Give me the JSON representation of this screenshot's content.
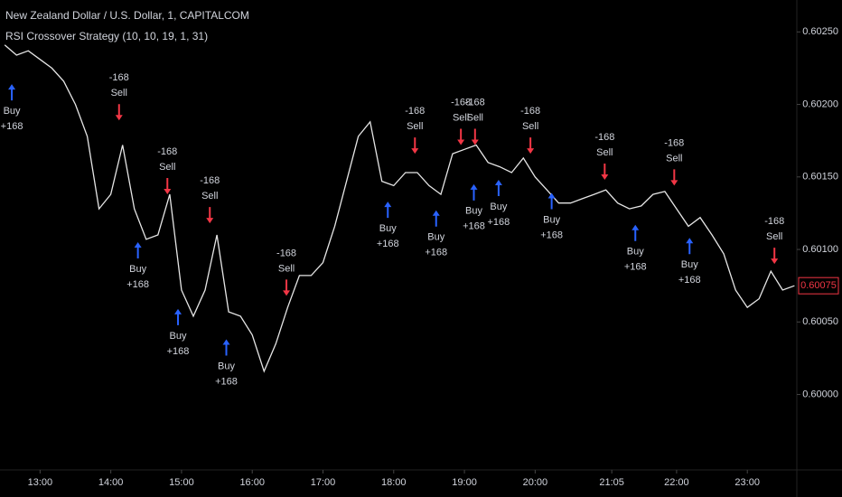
{
  "chart_data": {
    "type": "line",
    "title": "New Zealand Dollar / U.S. Dollar, 1, CAPITALCOM",
    "subtitle": "RSI Crossover Strategy (10, 10, 19, 1, 31)",
    "color": "#e6e6e6",
    "x": [
      "12:30",
      "12:40",
      "12:50",
      "13:00",
      "13:10",
      "13:20",
      "13:30",
      "13:40",
      "13:50",
      "14:00",
      "14:10",
      "14:20",
      "14:30",
      "14:40",
      "14:50",
      "15:00",
      "15:10",
      "15:20",
      "15:30",
      "15:40",
      "15:50",
      "16:00",
      "16:10",
      "16:20",
      "16:30",
      "16:40",
      "16:50",
      "17:00",
      "17:10",
      "17:20",
      "17:30",
      "17:40",
      "17:50",
      "18:00",
      "18:10",
      "18:20",
      "18:30",
      "18:40",
      "18:50",
      "19:00",
      "19:10",
      "19:20",
      "19:30",
      "19:40",
      "19:50",
      "20:00",
      "20:10",
      "20:20",
      "20:30",
      "20:40",
      "20:50",
      "21:00",
      "21:10",
      "21:20",
      "21:30",
      "21:40",
      "21:50",
      "22:00",
      "22:10",
      "22:20",
      "22:30",
      "22:40",
      "22:50",
      "23:00",
      "23:10",
      "23:20",
      "23:30",
      "23:40"
    ],
    "values": [
      0.60241,
      0.60234,
      0.60237,
      0.60231,
      0.60225,
      0.60216,
      0.602,
      0.60178,
      0.60128,
      0.60138,
      0.60172,
      0.60128,
      0.60107,
      0.6011,
      0.60138,
      0.60072,
      0.60054,
      0.60072,
      0.6011,
      0.60057,
      0.60054,
      0.60041,
      0.60016,
      0.60035,
      0.6006,
      0.60082,
      0.60082,
      0.60091,
      0.60116,
      0.60147,
      0.60178,
      0.60188,
      0.60147,
      0.60144,
      0.60153,
      0.60153,
      0.60144,
      0.60138,
      0.60166,
      0.60169,
      0.60172,
      0.6016,
      0.60157,
      0.60153,
      0.60163,
      0.6015,
      0.60141,
      0.60132,
      0.60132,
      0.60135,
      0.60138,
      0.60141,
      0.60132,
      0.60128,
      0.6013,
      0.60138,
      0.6014,
      0.60128,
      0.60116,
      0.60122,
      0.6011,
      0.60097,
      0.60072,
      0.6006,
      0.60066,
      0.60085,
      0.60072,
      0.60075
    ],
    "xlim": [
      "12:26",
      "23:42"
    ],
    "xticks": [
      "13:00",
      "14:00",
      "15:00",
      "16:00",
      "17:00",
      "18:00",
      "19:00",
      "20:00",
      "21:05",
      "22:00",
      "23:00"
    ],
    "ylim": [
      0.59948,
      0.60272
    ],
    "yticks": [
      {
        "value": 0.6,
        "label": "0.60000"
      },
      {
        "value": 0.6005,
        "label": "0.60050"
      },
      {
        "value": 0.601,
        "label": "0.60100"
      },
      {
        "value": 0.6015,
        "label": "0.60150"
      },
      {
        "value": 0.602,
        "label": "0.60200"
      },
      {
        "value": 0.6025,
        "label": "0.60250"
      }
    ],
    "signals": [
      {
        "side": "Buy",
        "qty": "+168",
        "time": "12:36",
        "price": 0.60214
      },
      {
        "side": "Sell",
        "qty": "-168",
        "time": "14:07",
        "price": 0.60189
      },
      {
        "side": "Buy",
        "qty": "+168",
        "time": "14:23",
        "price": 0.60105
      },
      {
        "side": "Sell",
        "qty": "-168",
        "time": "14:48",
        "price": 0.60138
      },
      {
        "side": "Buy",
        "qty": "+168",
        "time": "14:57",
        "price": 0.60059
      },
      {
        "side": "Sell",
        "qty": "-168",
        "time": "15:24",
        "price": 0.60118
      },
      {
        "side": "Buy",
        "qty": "+168",
        "time": "15:38",
        "price": 0.60038
      },
      {
        "side": "Sell",
        "qty": "-168",
        "time": "16:29",
        "price": 0.60068
      },
      {
        "side": "Buy",
        "qty": "+168",
        "time": "17:55",
        "price": 0.60133
      },
      {
        "side": "Sell",
        "qty": "-168",
        "time": "18:18",
        "price": 0.60166
      },
      {
        "side": "Buy",
        "qty": "+168",
        "time": "18:36",
        "price": 0.60127
      },
      {
        "side": "Sell",
        "qty": "-168",
        "time": "18:57",
        "price": 0.60172
      },
      {
        "side": "Buy",
        "qty": "+168",
        "time": "19:08",
        "price": 0.60145
      },
      {
        "side": "Sell",
        "qty": "-168",
        "time": "19:09",
        "price": 0.60172
      },
      {
        "side": "Buy",
        "qty": "+168",
        "time": "19:29",
        "price": 0.60148
      },
      {
        "side": "Sell",
        "qty": "-168",
        "time": "19:56",
        "price": 0.60166
      },
      {
        "side": "Buy",
        "qty": "+168",
        "time": "20:14",
        "price": 0.60139
      },
      {
        "side": "Sell",
        "qty": "-168",
        "time": "20:59",
        "price": 0.60148
      },
      {
        "side": "Buy",
        "qty": "+168",
        "time": "21:25",
        "price": 0.60117
      },
      {
        "side": "Sell",
        "qty": "-168",
        "time": "21:58",
        "price": 0.60144
      },
      {
        "side": "Buy",
        "qty": "+168",
        "time": "22:11",
        "price": 0.60108
      },
      {
        "side": "Sell",
        "qty": "-168",
        "time": "23:23",
        "price": 0.6009
      }
    ],
    "buy_color": "#2962ff",
    "sell_color": "#f23645"
  }
}
